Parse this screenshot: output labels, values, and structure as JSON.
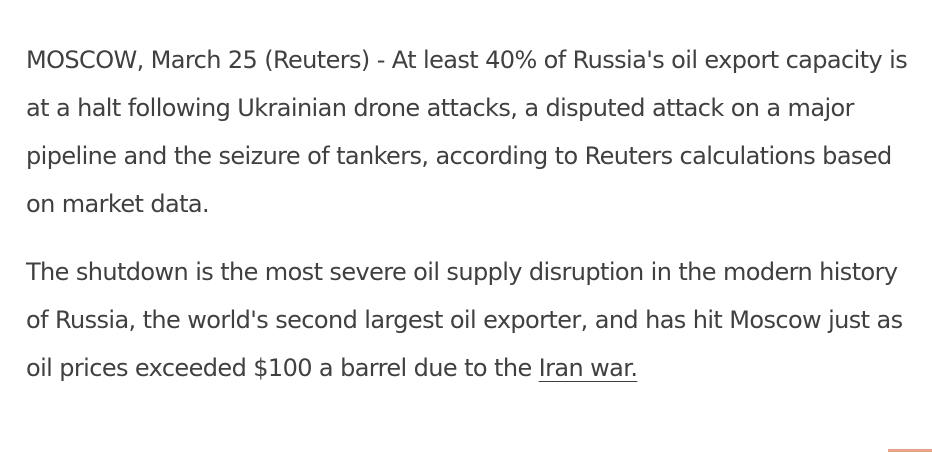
{
  "article": {
    "paragraphs": [
      {
        "text": "MOSCOW, March 25 (Reuters) - At least 40% of Russia's oil export capacity is at a halt following Ukrainian drone attacks, a disputed attack on a major pipeline and the seizure of tankers, according to Reuters calculations based on market data."
      },
      {
        "text": "The shutdown is the most severe oil supply disruption in the modern history of Russia, the world's second largest oil exporter, and has hit Moscow just as oil prices exceeded $100 a barrel due to the ",
        "link_text": "Iran war."
      }
    ]
  },
  "colors": {
    "text": "#404040",
    "background": "#ffffff",
    "accent_mark": "#e8a487"
  }
}
